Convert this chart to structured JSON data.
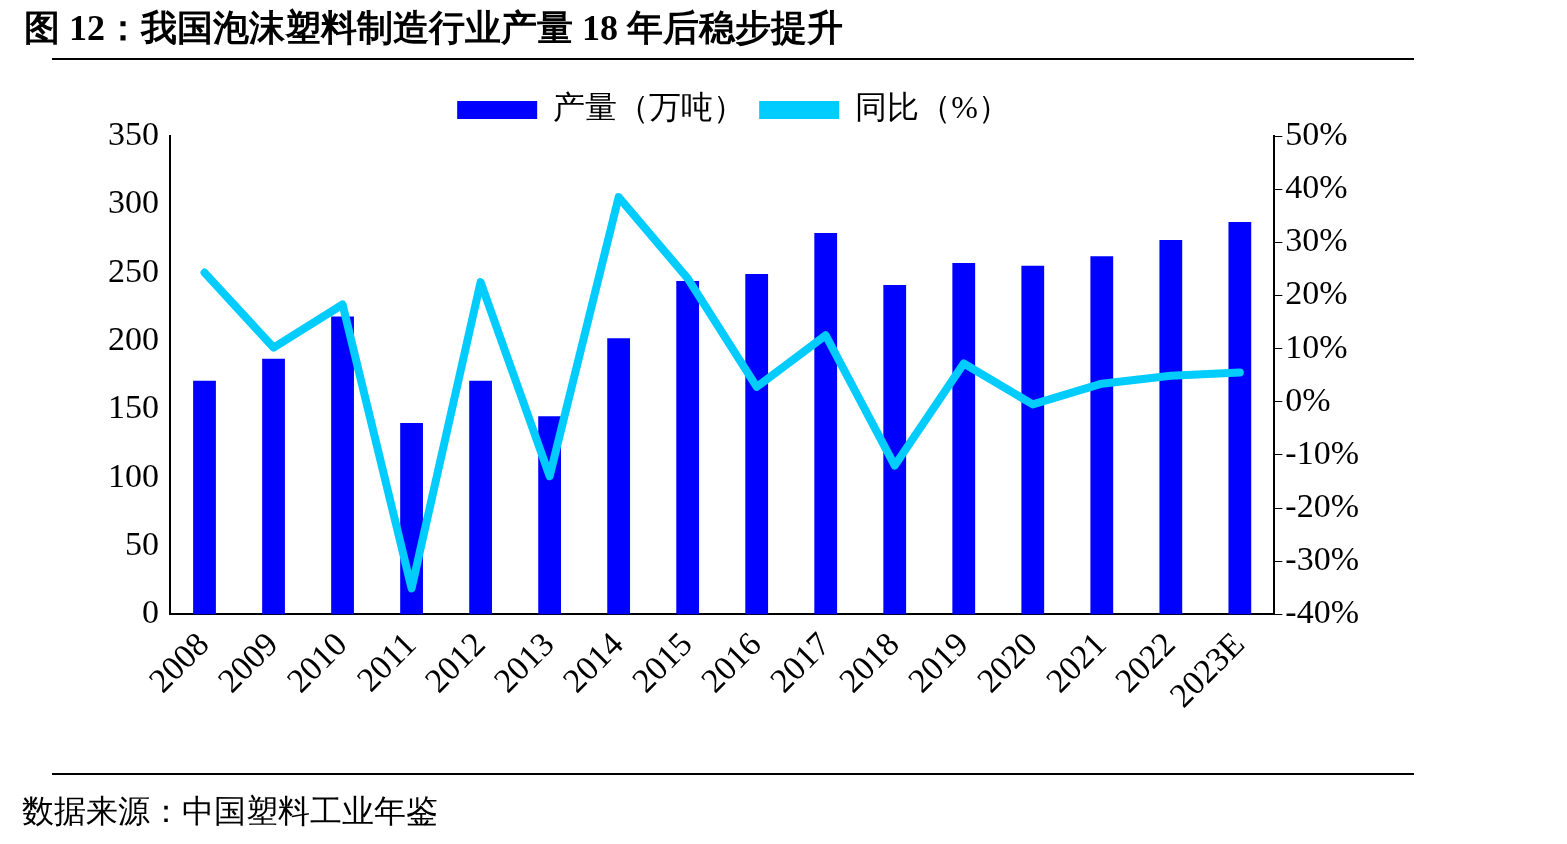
{
  "chart_data": {
    "type": "bar",
    "title": "图 12：我国泡沫塑料制造行业产量 18 年后稳步提升",
    "categories": [
      "2008",
      "2009",
      "2010",
      "2011",
      "2012",
      "2013",
      "2014",
      "2015",
      "2016",
      "2017",
      "2018",
      "2019",
      "2020",
      "2021",
      "2022",
      "2023E"
    ],
    "series": [
      {
        "name": "产量（万吨）",
        "color": "#0000ff",
        "values": [
          171,
          187,
          218,
          140,
          171,
          145,
          202,
          244,
          249,
          279,
          241,
          257,
          255,
          262,
          274,
          287
        ]
      },
      {
        "name": "同比（%）",
        "type": "line",
        "axis": "y2",
        "color": "#00ccff",
        "values": [
          24.3,
          10.2,
          18.3,
          -35.1,
          22.5,
          -14,
          38.5,
          23.2,
          2.8,
          12.5,
          -12,
          7.2,
          -0.5,
          3.4,
          4.9,
          5.5
        ]
      }
    ],
    "ylim": [
      0,
      350
    ],
    "yticks": [
      0,
      50,
      100,
      150,
      200,
      250,
      300,
      350
    ],
    "y2lim": [
      -40,
      50
    ],
    "y2ticks": [
      {
        "value": -40,
        "label": "-40%"
      },
      {
        "value": -30,
        "label": "-30%"
      },
      {
        "value": -20,
        "label": "-20%"
      },
      {
        "value": -10,
        "label": "-10%"
      },
      {
        "value": 0,
        "label": "0%"
      },
      {
        "value": 10,
        "label": "10%"
      },
      {
        "value": 20,
        "label": "20%"
      },
      {
        "value": 30,
        "label": "30%"
      },
      {
        "value": 40,
        "label": "40%"
      },
      {
        "value": 50,
        "label": "50%"
      }
    ],
    "legend": "top",
    "grid": false,
    "marker": "none",
    "line_style": "solid",
    "annotations": [
      "数据来源：中国塑料工业年鉴"
    ]
  }
}
